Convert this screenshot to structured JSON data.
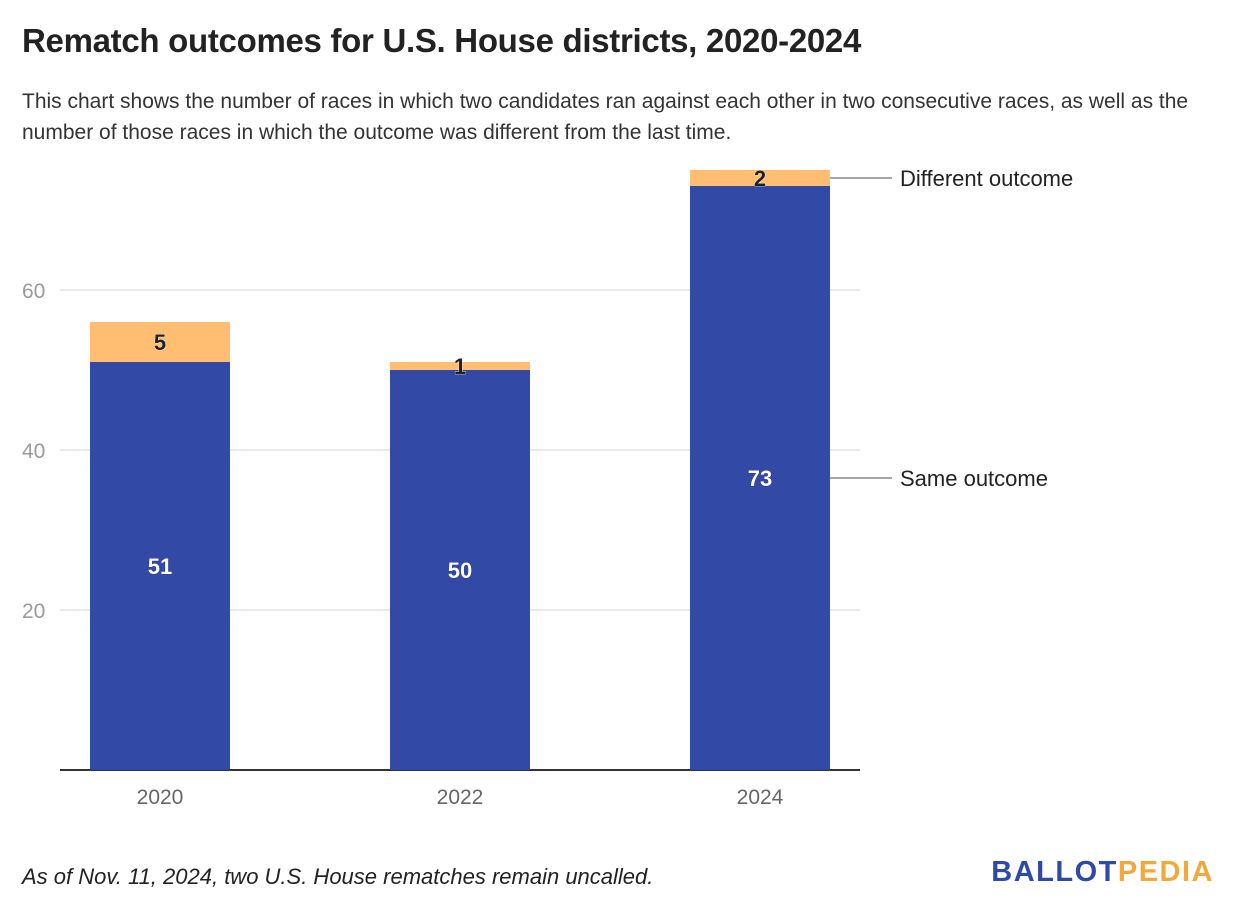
{
  "header": {
    "title": "Rematch outcomes for U.S. House districts, 2020-2024",
    "subtitle": "This chart shows the number of races in which two candidates ran against each other in two consecutive races, as well as the number of those races in which the outcome was different from the last time."
  },
  "footer": {
    "note": "As of Nov. 11, 2024, two U.S. House rematches remain uncalled.",
    "logo_part1": "BALLOT",
    "logo_part2": "PEDIA"
  },
  "chart_data": {
    "type": "bar",
    "stacked": true,
    "categories": [
      "2020",
      "2022",
      "2024"
    ],
    "series": [
      {
        "name": "Same outcome",
        "values": [
          51,
          50,
          73
        ],
        "color": "#3349a6"
      },
      {
        "name": "Different outcome",
        "values": [
          5,
          1,
          2
        ],
        "color": "#ffbe72"
      }
    ],
    "yticks": [
      20,
      40,
      60
    ],
    "ylim": [
      0,
      75
    ],
    "grid": true,
    "legend": "direct labels at right"
  }
}
